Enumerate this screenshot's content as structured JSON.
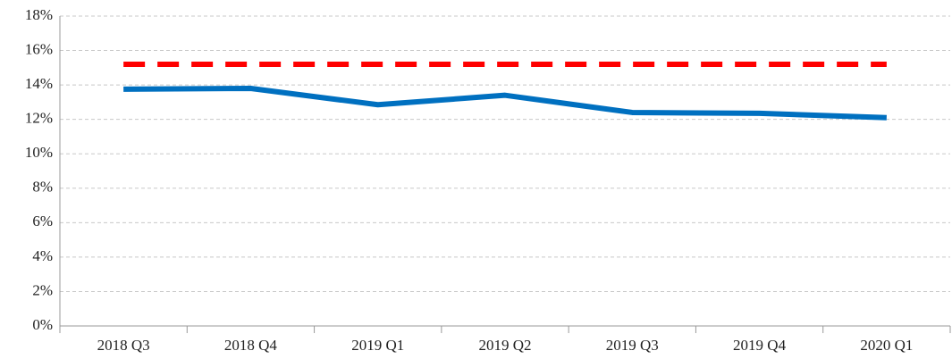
{
  "chart_data": {
    "type": "line",
    "categories": [
      "2018 Q3",
      "2018 Q4",
      "2019 Q1",
      "2019 Q2",
      "2019 Q3",
      "2019 Q4",
      "2020 Q1"
    ],
    "series": [
      {
        "color": "#0070c0",
        "style": "solid",
        "values": [
          13.75,
          13.8,
          12.85,
          13.4,
          12.4,
          12.35,
          12.1
        ]
      },
      {
        "color": "#ff0000",
        "style": "dashed",
        "values": [
          15.2,
          15.2,
          15.2,
          15.2,
          15.2,
          15.2,
          15.2
        ]
      }
    ],
    "ylim": [
      0,
      18
    ],
    "yticks": [
      {
        "value": 0,
        "label": "0%"
      },
      {
        "value": 2,
        "label": "2%"
      },
      {
        "value": 4,
        "label": "4%"
      },
      {
        "value": 6,
        "label": "6%"
      },
      {
        "value": 8,
        "label": "8%"
      },
      {
        "value": 10,
        "label": "10%"
      },
      {
        "value": 12,
        "label": "12%"
      },
      {
        "value": 14,
        "label": "14%"
      },
      {
        "value": 16,
        "label": "16%"
      },
      {
        "value": 18,
        "label": "18%"
      }
    ],
    "grid": true
  }
}
